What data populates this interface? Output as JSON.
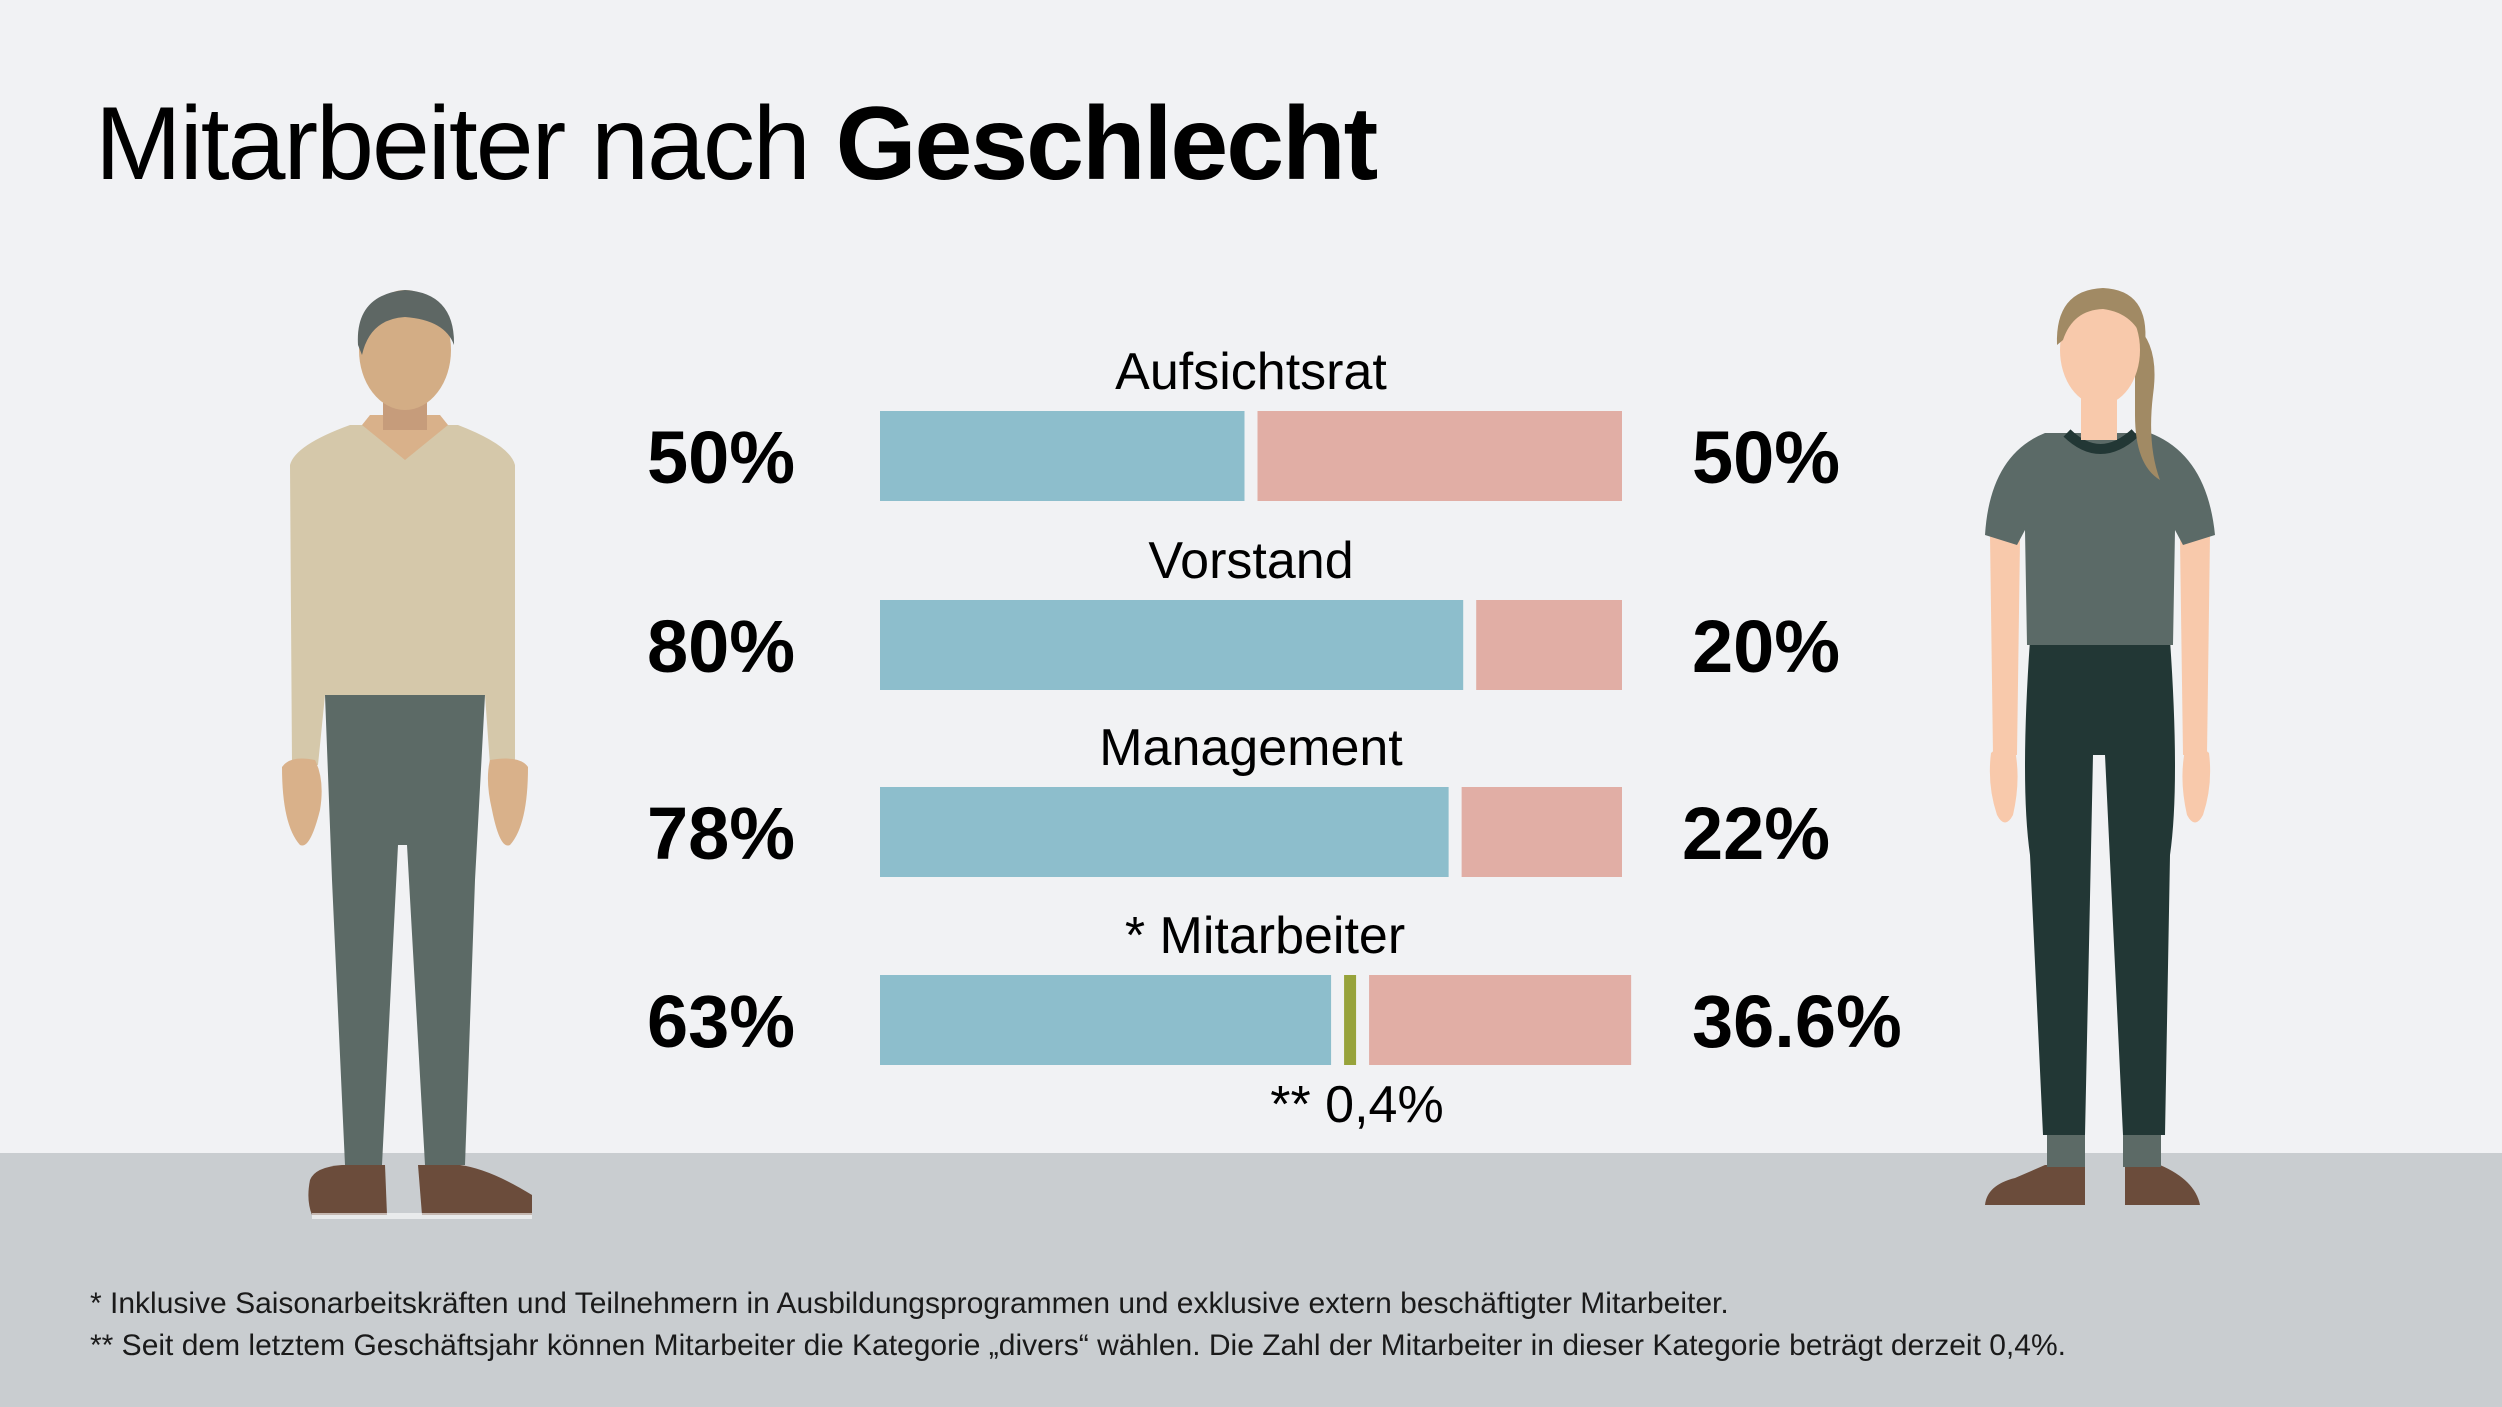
{
  "title": {
    "light": "Mitarbeiter nach ",
    "bold": "Geschlecht"
  },
  "chart_data": {
    "type": "bar",
    "orientation": "horizontal",
    "stacked": true,
    "categories": [
      "Aufsichtsrat",
      "Vorstand",
      "Management",
      "* Mitarbeiter"
    ],
    "series": [
      {
        "name": "",
        "values": [
          50,
          80,
          78,
          63
        ],
        "labels": [
          "50%",
          "80%",
          "78%",
          "63%"
        ]
      },
      {
        "name": "",
        "values": [
          0,
          0,
          0,
          0.4
        ]
      },
      {
        "name": "",
        "values": [
          50,
          20,
          22,
          36.6
        ],
        "labels": [
          "50%",
          "20%",
          "22%",
          "36.6%"
        ]
      }
    ],
    "annotation": "** 0,4%",
    "xlim": [
      0,
      100
    ],
    "grid": false,
    "colors": {
      "men": "#8dbecc",
      "divers": "#97a33b",
      "women": "#e1aea5"
    }
  },
  "footnotes": [
    "* Inklusive Saisonarbeitskräften und Teilnehmern in Ausbildungsprogrammen und exklusive extern beschäftigter Mitarbeiter.",
    "** Seit dem letztem Geschäftsjahr können Mitarbeiter die Kategorie „divers“ wählen. Die Zahl der Mitarbeiter in dieser Kategorie beträgt derzeit 0,4%."
  ],
  "illustrations": {
    "left": "man-figure",
    "right": "woman-figure"
  }
}
